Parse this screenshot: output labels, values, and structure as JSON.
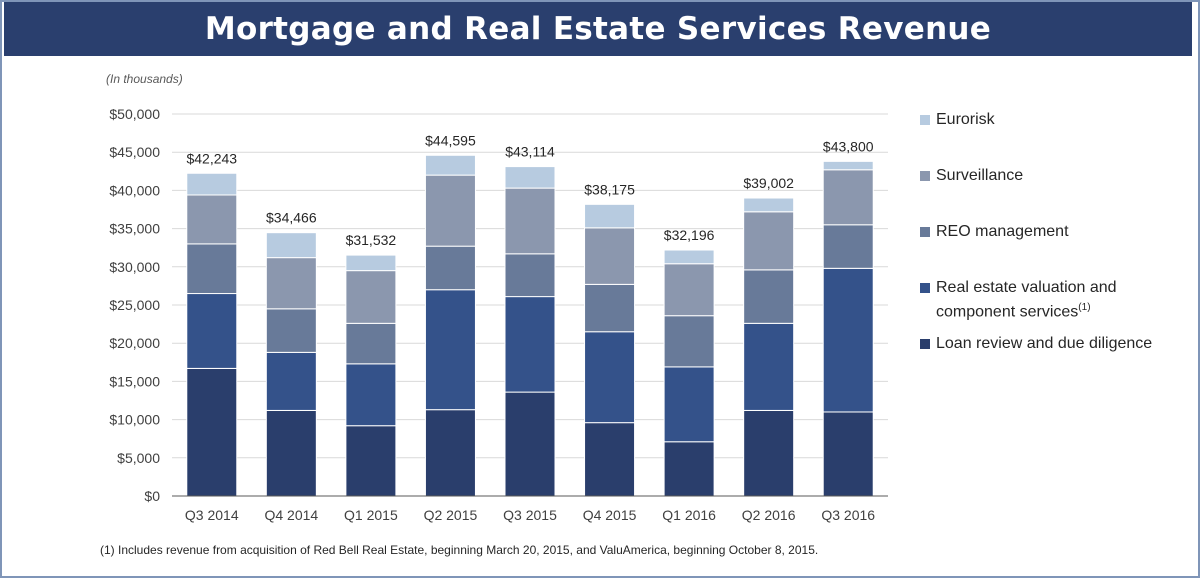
{
  "title": "Mortgage and Real Estate Services Revenue",
  "units_note": "(In thousands)",
  "footnote": "(1) Includes revenue  from acquisition of Red Bell Real Estate, beginning March 20, 2015, and ValuAmerica, beginning October 8, 2015.",
  "legend": [
    {
      "label": "Eurorisk",
      "sup": "",
      "color": "#b7cbe0"
    },
    {
      "label": "Surveillance",
      "sup": "",
      "color": "#8b97ae"
    },
    {
      "label": "REO management",
      "sup": "",
      "color": "#687a99"
    },
    {
      "label": "Real estate valuation and component services",
      "sup": "(1)",
      "color": "#34528a"
    },
    {
      "label": "Loan review and due diligence",
      "sup": "",
      "color": "#2a3e6c"
    }
  ],
  "chart_data": {
    "type": "bar",
    "stacked": true,
    "title": "Mortgage and Real Estate Services Revenue",
    "ylabel": "(In thousands)",
    "ylim": [
      0,
      50000
    ],
    "ytick_step": 5000,
    "ytick_labels": [
      "$0",
      "$5,000",
      "$10,000",
      "$15,000",
      "$20,000",
      "$25,000",
      "$30,000",
      "$35,000",
      "$40,000",
      "$45,000",
      "$50,000"
    ],
    "categories": [
      "Q3 2014",
      "Q4 2014",
      "Q1 2015",
      "Q2 2015",
      "Q3 2015",
      "Q4 2015",
      "Q1 2016",
      "Q2 2016",
      "Q3 2016"
    ],
    "totals": [
      42243,
      34466,
      31532,
      44595,
      43114,
      38175,
      32196,
      39002,
      43800
    ],
    "total_labels": [
      "$42,243",
      "$34,466",
      "$31,532",
      "$44,595",
      "$43,114",
      "$38,175",
      "$32,196",
      "$39,002",
      "$43,800"
    ],
    "series": [
      {
        "name": "Loan review and due diligence",
        "color": "#2a3e6c",
        "values": [
          16700,
          11200,
          9200,
          11300,
          13600,
          9600,
          7100,
          11200,
          11000
        ]
      },
      {
        "name": "Real estate valuation and component services",
        "color": "#34528a",
        "values": [
          9800,
          7600,
          8100,
          15700,
          12500,
          11900,
          9800,
          11400,
          18800
        ]
      },
      {
        "name": "REO management",
        "color": "#687a99",
        "values": [
          6500,
          5700,
          5300,
          5700,
          5600,
          6200,
          6700,
          7000,
          5700
        ]
      },
      {
        "name": "Surveillance",
        "color": "#8b97ae",
        "values": [
          6400,
          6700,
          6900,
          9300,
          8600,
          7400,
          6800,
          7600,
          7200
        ]
      },
      {
        "name": "Eurorisk",
        "color": "#b7cbe0",
        "values": [
          2843,
          3266,
          2032,
          2595,
          2814,
          3075,
          1796,
          1802,
          1100
        ]
      }
    ],
    "legend_position": "right",
    "grid": true
  }
}
